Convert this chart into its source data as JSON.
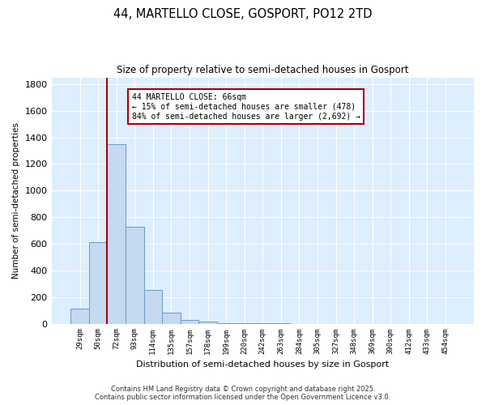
{
  "title": "44, MARTELLO CLOSE, GOSPORT, PO12 2TD",
  "subtitle": "Size of property relative to semi-detached houses in Gosport",
  "xlabel": "Distribution of semi-detached houses by size in Gosport",
  "ylabel": "Number of semi-detached properties",
  "categories": [
    "29sqm",
    "50sqm",
    "72sqm",
    "93sqm",
    "114sqm",
    "135sqm",
    "157sqm",
    "178sqm",
    "199sqm",
    "220sqm",
    "242sqm",
    "263sqm",
    "284sqm",
    "305sqm",
    "327sqm",
    "348sqm",
    "369sqm",
    "390sqm",
    "412sqm",
    "433sqm",
    "454sqm"
  ],
  "values": [
    110,
    610,
    1350,
    730,
    250,
    85,
    30,
    15,
    5,
    3,
    2,
    1,
    0,
    0,
    0,
    0,
    0,
    0,
    0,
    0,
    0
  ],
  "bar_color": "#c5d9f0",
  "bar_edge_color": "#6699cc",
  "background_color": "#ddeeff",
  "grid_color": "#ffffff",
  "annotation_text": "44 MARTELLO CLOSE: 66sqm\n← 15% of semi-detached houses are smaller (478)\n84% of semi-detached houses are larger (2,692) →",
  "annotation_box_color": "#ffffff",
  "annotation_border_color": "#aa0000",
  "ylim": [
    0,
    1850
  ],
  "yticks": [
    0,
    200,
    400,
    600,
    800,
    1000,
    1200,
    1400,
    1600,
    1800
  ],
  "footer_line1": "Contains HM Land Registry data © Crown copyright and database right 2025.",
  "footer_line2": "Contains public sector information licensed under the Open Government Licence v3.0."
}
